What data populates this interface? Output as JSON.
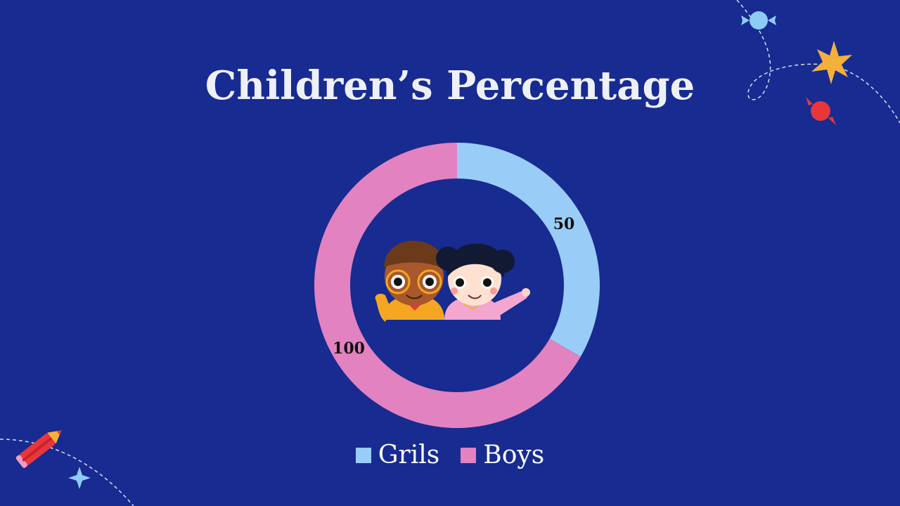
{
  "slide": {
    "title": "Children’s Percentage",
    "background": "#172b91"
  },
  "colors": {
    "girls": "#99cdf8",
    "boys": "#e282c0",
    "star_orange": "#f5b03c",
    "candy_red": "#e8363b",
    "candy_blue": "#8ecbf7"
  },
  "icons": [
    "candy-icon",
    "star-icon",
    "pencil-icon",
    "sparkle-icon",
    "children-illustration"
  ],
  "chart_data": {
    "type": "pie",
    "subtype": "donut",
    "categories": [
      "Grils",
      "Boys"
    ],
    "values": [
      50,
      100
    ],
    "data_labels": [
      "50",
      "100"
    ],
    "colors": [
      "#99cdf8",
      "#e282c0"
    ],
    "legend_position": "bottom",
    "title": "Children’s Percentage"
  }
}
